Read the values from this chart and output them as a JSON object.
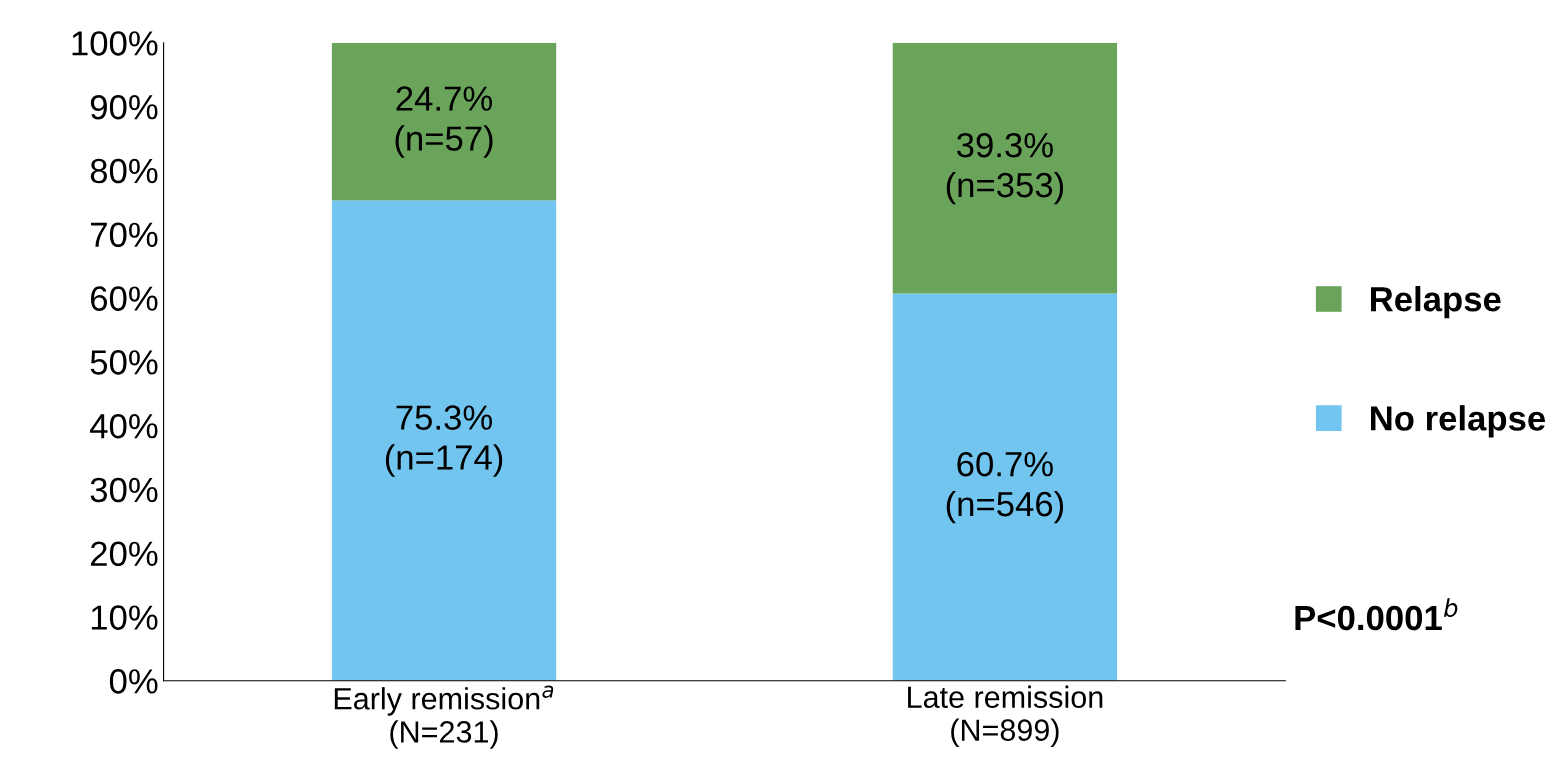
{
  "chart_data": {
    "type": "bar",
    "stacked": true,
    "categories": [
      "Early remission$^{a}$\n(N=231)",
      "Late remission\n(N=899)"
    ],
    "series": [
      {
        "name": "No relapse",
        "color": "#72c5ee",
        "values": [
          75.3,
          60.7
        ],
        "value_labels": [
          "75.3%\n(n=174)",
          "60.7%\n(n=546)"
        ]
      },
      {
        "name": "Relapse",
        "color": "#6aa35a",
        "values": [
          24.7,
          39.3
        ],
        "value_labels": [
          "24.7%\n(n=57)",
          "39.3%\n(n=353)"
        ]
      }
    ],
    "ylim": [
      0,
      100
    ],
    "yticks": [
      {
        "value": 0,
        "label": "0%"
      },
      {
        "value": 10,
        "label": "10%"
      },
      {
        "value": 20,
        "label": "20%"
      },
      {
        "value": 30,
        "label": "30%"
      },
      {
        "value": 40,
        "label": "40%"
      },
      {
        "value": 50,
        "label": "50%"
      },
      {
        "value": 60,
        "label": "60%"
      },
      {
        "value": 70,
        "label": "70%"
      },
      {
        "value": 80,
        "label": "80%"
      },
      {
        "value": 90,
        "label": "90%"
      },
      {
        "value": 100,
        "label": "100%"
      }
    ],
    "annotations": [
      "P<0.0001$^{b}$"
    ],
    "legend": "right",
    "grid": false
  }
}
